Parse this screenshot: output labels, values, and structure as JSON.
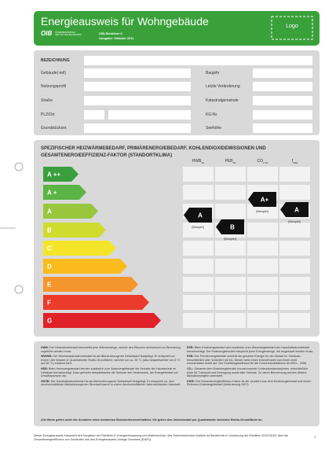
{
  "header": {
    "title": "Energieausweis für Wohngebäude",
    "logo_text": "OIB",
    "logo_subtitle": "ÖSTERREICHISCHES INSTITUT FÜR BAUTECHNIK",
    "guideline": "OIB-Richtlinie 6",
    "edition": "Ausgabe: Oktober 2011",
    "logo_placeholder": "Logo"
  },
  "identification": {
    "heading": "BEZEICHNUNG",
    "left_fields": [
      "Gebäude(-teil)",
      "Nutzungsprofil",
      "Straße",
      "PLZ/Ort",
      "Grundstücksnr."
    ],
    "right_fields": [
      "Baujahr",
      "Letzte Veränderung",
      "Katastralgemeinde",
      "KG-Nr.",
      "Seehöhe"
    ]
  },
  "efficiency": {
    "title_lines": [
      "SPEZIFISCHER HEIZWÄRMEBEDARF, PRIMÄRENERGIEBEDARF, KOHLENDIOXIDEMISSIONEN UND",
      "GESAMTENERGIEEFFIZIENZ-FAKTOR (STANDORTKLIMA)"
    ],
    "columns": [
      {
        "name": "HWB",
        "sub": "SK"
      },
      {
        "name": "PEB",
        "sub": "SK"
      },
      {
        "name": "CO",
        "sub": "2 SK"
      },
      {
        "name": "f",
        "sub": "GEE"
      }
    ],
    "classes": [
      {
        "label": "A ++",
        "color": "#3a9e3c"
      },
      {
        "label": "A +",
        "color": "#5bb445"
      },
      {
        "label": "A",
        "color": "#98c73e"
      },
      {
        "label": "B",
        "color": "#cfdc2e"
      },
      {
        "label": "C",
        "color": "#f4e42a"
      },
      {
        "label": "D",
        "color": "#fbbb1c"
      },
      {
        "label": "E",
        "color": "#f4962b"
      },
      {
        "label": "F",
        "color": "#eb3b2a"
      },
      {
        "label": "G",
        "color": "#e1212a"
      }
    ],
    "examples": [
      {
        "label": "A",
        "note": "(Beispiel)"
      },
      {
        "label": "B",
        "note": "(Beispiel)"
      },
      {
        "label": "A+",
        "note": "(Beispiel)"
      },
      {
        "label": "A",
        "note": "(Beispiel)"
      }
    ]
  },
  "notes": {
    "left": [
      {
        "term": "HWB:",
        "text": "Der Heizwärmebedarf beschreibt jene Wärmemenge, welche den Räumen rechnerisch zur Beheizung zugeführt werden muss."
      },
      {
        "term": "WWWB:",
        "text": "Der Warmwasserwärmebedarf ist als flächenbezogener Defaultwert festgelegt. Er entspricht ca. einem Liter Wasser je Quadratmeter Brutto-Grundfläche, welcher um ca. 30 °C (also beispielsweise von 8 °C auf 38 °C) erwärmt wird."
      },
      {
        "term": "HEB:",
        "text": "Beim Heizenergiebedarf werden zusätzlich zum Nutzenergiebedarf die Verluste der Haustechnik im Gebäude berücksichtigt. Dazu gehören beispielsweise die Verluste des Heizkessels, der Energiebedarf von Umwälzpumpen etc."
      },
      {
        "term": "HHSB:",
        "text": "Der Haushaltsstrombedarf ist als flächenbezogener Defaultwert festgelegt. Er entspricht ca. dem durchschnittlichen flächenbezogenen Stromverbrauch in einem durchschnittlichen österreichischen Haushalt."
      }
    ],
    "right": [
      {
        "term": "EEB:",
        "text": "Beim Endenergiebedarf wird zusätzlich zum Heizenergiebedarf der Haushaltsstrombedarf berücksichtigt. Der Endenergiebedarf entspricht jener Energiemenge, die eingekauft werden muss."
      },
      {
        "term": "PEB:",
        "text": "Der Primärenergiebedarf schließt die gesamte Energie für den Bedarf im Gebäude einschließlich aller Vorketten mit ein. Dieser weist einen erneuerbaren und einen nicht erneuerbaren Anteil auf. Der Ermittlungszeitraum für die Konversionsfaktoren ist 2004 – 2008."
      },
      {
        "term": "CO₂:",
        "text": "Gesamte dem Endenergiebedarf zuzurechnende Kohlendioxidemissionen, einschließlich jener für Transport und Erzeugung sowie aller Verluste. Zu deren Berechnung wurden übliche Allokationsregeln unterstellt."
      },
      {
        "term": "fGEE:",
        "text": "Der Gesamtenergieeffizienz-Faktor ist der Quotient aus dem Endenergiebedarf und einem Referenz-Endenergiebedarf (Anforderung 2007)."
      }
    ],
    "footer": "Alle Werte gelten unter der Annahme eines normierten BenutzerInnenverhaltens. Sie geben den Jahresbedarf pro Quadratmeter beheizter Brutto-Grundfläche an."
  },
  "legal": "Dieser Energieausweis entspricht den Vorgaben der Richtlinie 6 „Energieeinsparung und Wärmeschutz“ des Österreichischen Instituts für Bautechnik in Umsetzung der Richtlinie 2010/31/EU über die Gesamtenergieeffizienz von Gebäuden und des Energieausweis-Vorlage-Gesetzes (EAVG).",
  "page": "1"
}
